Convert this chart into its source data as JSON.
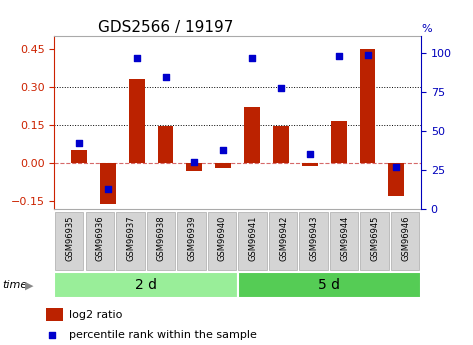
{
  "title": "GDS2566 / 19197",
  "samples": [
    "GSM96935",
    "GSM96936",
    "GSM96937",
    "GSM96938",
    "GSM96939",
    "GSM96940",
    "GSM96941",
    "GSM96942",
    "GSM96943",
    "GSM96944",
    "GSM96945",
    "GSM96946"
  ],
  "log2_ratio": [
    0.05,
    -0.16,
    0.33,
    0.145,
    -0.03,
    -0.02,
    0.22,
    0.145,
    -0.01,
    0.165,
    0.45,
    -0.13
  ],
  "percentile_rank": [
    42,
    13,
    97,
    85,
    30,
    38,
    97,
    78,
    35,
    98,
    99,
    27
  ],
  "groups": [
    {
      "label": "2 d",
      "start": 0,
      "end": 6
    },
    {
      "label": "5 d",
      "start": 6,
      "end": 12
    }
  ],
  "ylim_left": [
    -0.18,
    0.5
  ],
  "ylim_right": [
    0,
    111
  ],
  "yticks_left": [
    -0.15,
    0.0,
    0.15,
    0.3,
    0.45
  ],
  "yticks_right": [
    0,
    25,
    50,
    75,
    100
  ],
  "hlines": [
    0.15,
    0.3
  ],
  "bar_color": "#bb2200",
  "scatter_color": "#0000cc",
  "bar_width": 0.55,
  "legend_items": [
    {
      "label": "log2 ratio",
      "color": "#bb2200"
    },
    {
      "label": "percentile rank within the sample",
      "color": "#0000cc"
    }
  ],
  "group_colors": [
    "#99ee99",
    "#55cc55"
  ],
  "time_label": "time",
  "tick_label_color_left": "#cc2200",
  "tick_label_color_right": "#0000bb",
  "zero_line_color": "#cc4444",
  "dotted_line_color": "#000000",
  "title_fontsize": 11,
  "tick_fontsize": 8,
  "group_label_fontsize": 10,
  "sample_fontsize": 6
}
